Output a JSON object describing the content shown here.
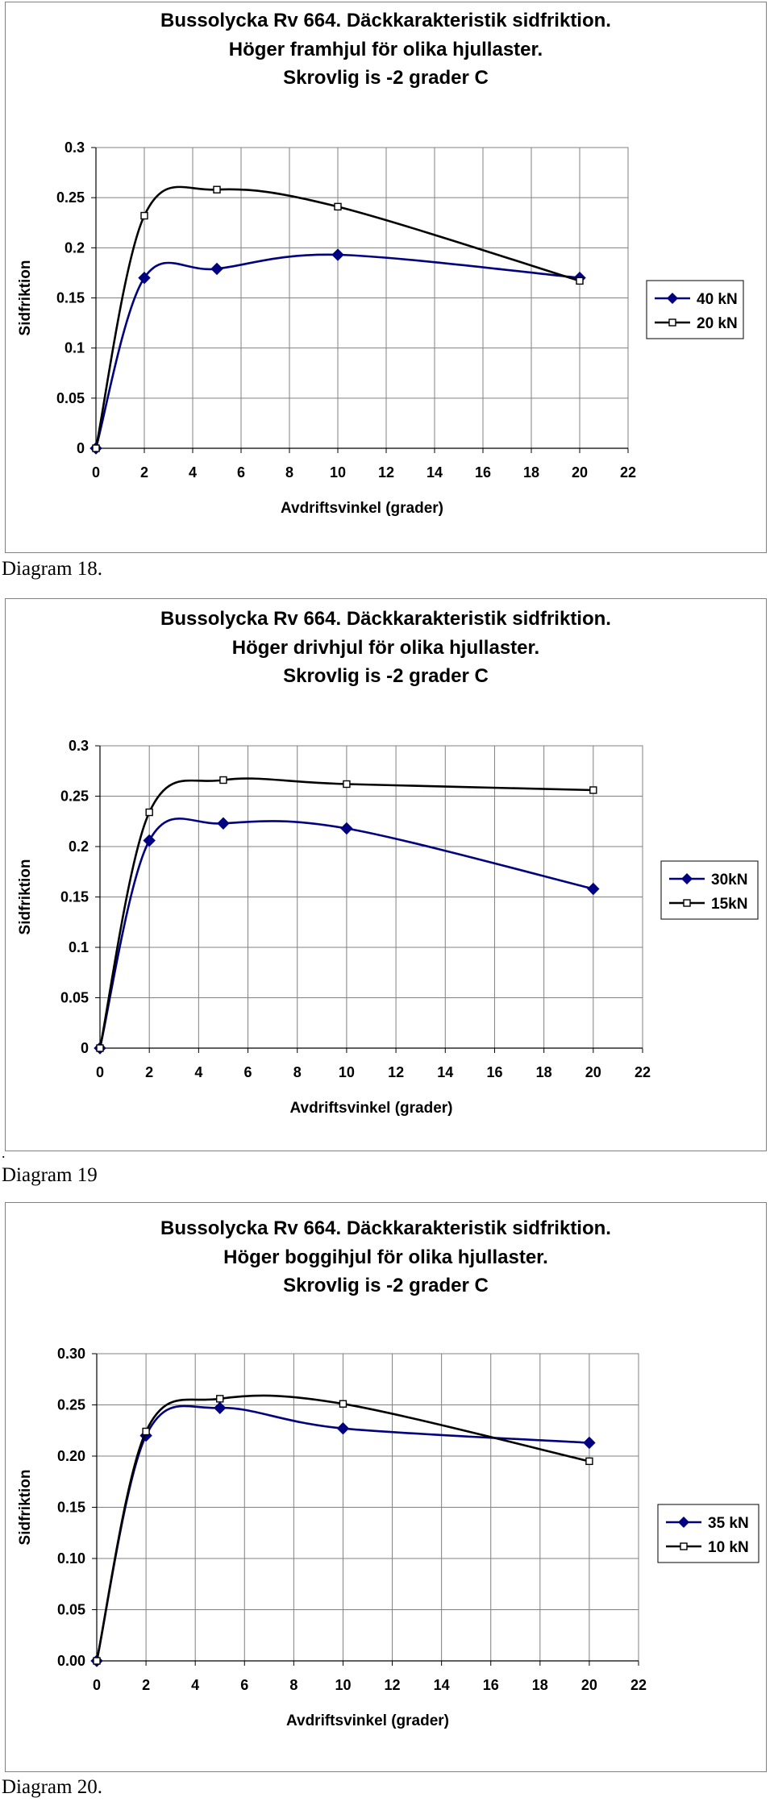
{
  "chart_data": [
    {
      "type": "line",
      "title": [
        "Bussolycka Rv 664. Däckkarakteristik sidfriktion.",
        "Höger framhjul för olika hjullaster.",
        "Skrovlig is -2 grader C"
      ],
      "xlabel": "Avdriftsvinkel (grader)",
      "ylabel": "Sidfriktion",
      "xlim": [
        0,
        22
      ],
      "ylim": [
        0,
        0.3
      ],
      "x_ticks": [
        "0",
        "2",
        "4",
        "6",
        "8",
        "10",
        "12",
        "14",
        "16",
        "18",
        "20",
        "22"
      ],
      "y_ticks": [
        "0",
        "0.05",
        "0.1",
        "0.15",
        "0.2",
        "0.25",
        "0.3"
      ],
      "grid": true,
      "legend_position": "right",
      "series": [
        {
          "name": "40 kN",
          "color": "#000080",
          "marker": "diamond",
          "x": [
            0,
            2,
            5,
            10,
            20
          ],
          "y": [
            0,
            0.17,
            0.179,
            0.193,
            0.17
          ]
        },
        {
          "name": "20 kN",
          "color": "#000000",
          "marker": "square",
          "x": [
            0,
            2,
            5,
            10,
            20
          ],
          "y": [
            0,
            0.232,
            0.258,
            0.241,
            0.167
          ]
        }
      ],
      "caption": "Diagram 18."
    },
    {
      "type": "line",
      "title": [
        "Bussolycka Rv 664. Däckkarakteristik sidfriktion.",
        "Höger drivhjul för olika hjullaster.",
        "Skrovlig is -2 grader C"
      ],
      "xlabel": "Avdriftsvinkel (grader)",
      "ylabel": "Sidfriktion",
      "xlim": [
        0,
        22
      ],
      "ylim": [
        0,
        0.3
      ],
      "x_ticks": [
        "0",
        "2",
        "4",
        "6",
        "8",
        "10",
        "12",
        "14",
        "16",
        "18",
        "20",
        "22"
      ],
      "y_ticks": [
        "0",
        "0.05",
        "0.1",
        "0.15",
        "0.2",
        "0.25",
        "0.3"
      ],
      "grid": true,
      "legend_position": "right",
      "series": [
        {
          "name": "30kN",
          "color": "#000080",
          "marker": "diamond",
          "x": [
            0,
            2,
            5,
            10,
            20
          ],
          "y": [
            0,
            0.206,
            0.223,
            0.218,
            0.158
          ]
        },
        {
          "name": "15kN",
          "color": "#000000",
          "marker": "square",
          "x": [
            0,
            2,
            5,
            10,
            20
          ],
          "y": [
            0,
            0.234,
            0.266,
            0.262,
            0.256
          ]
        }
      ],
      "caption": "Diagram 19",
      "prefix_mark": "."
    },
    {
      "type": "line",
      "title": [
        "Bussolycka Rv 664. Däckkarakteristik sidfriktion.",
        "Höger boggihjul för olika hjullaster.",
        "Skrovlig is -2 grader C"
      ],
      "xlabel": "Avdriftsvinkel (grader)",
      "ylabel": "Sidfriktion",
      "xlim": [
        0,
        22
      ],
      "ylim": [
        0,
        0.3
      ],
      "x_ticks": [
        "0",
        "2",
        "4",
        "6",
        "8",
        "10",
        "12",
        "14",
        "16",
        "18",
        "20",
        "22"
      ],
      "y_ticks": [
        "0.00",
        "0.05",
        "0.10",
        "0.15",
        "0.20",
        "0.25",
        "0.30"
      ],
      "grid": true,
      "legend_position": "right",
      "series": [
        {
          "name": "35 kN",
          "color": "#000080",
          "marker": "diamond",
          "x": [
            0,
            2,
            5,
            10,
            20
          ],
          "y": [
            0,
            0.22,
            0.247,
            0.227,
            0.213
          ]
        },
        {
          "name": "10 kN",
          "color": "#000000",
          "marker": "square",
          "x": [
            0,
            2,
            5,
            10,
            20
          ],
          "y": [
            0,
            0.224,
            0.256,
            0.251,
            0.195
          ]
        }
      ],
      "caption": "Diagram 20."
    }
  ]
}
